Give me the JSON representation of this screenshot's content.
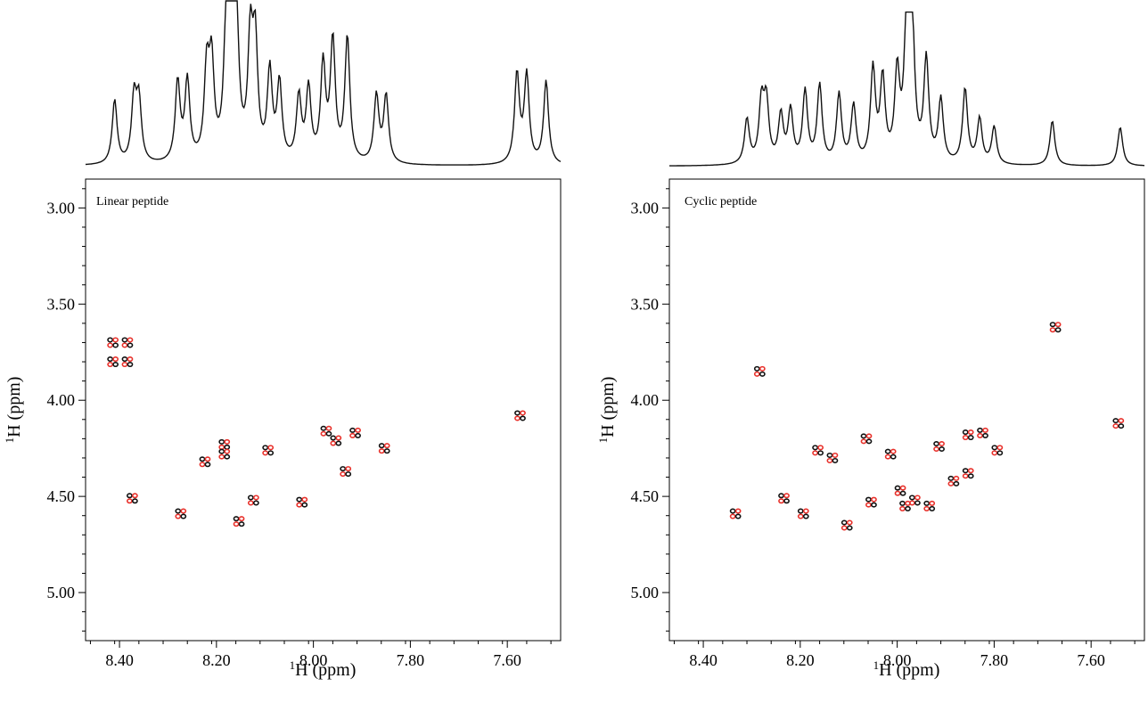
{
  "colors": {
    "reference": "#111111",
    "highlight": "#e8302a"
  },
  "chart_data": [
    {
      "type": "scatter",
      "panel_label": "Linear peptide",
      "xlabel": "1H (ppm)",
      "ylabel": "1H (ppm)",
      "xlim": [
        8.47,
        7.49
      ],
      "ylim": [
        2.85,
        5.25
      ],
      "x_ticks": [
        "8.40",
        "8.20",
        "8.00",
        "7.80",
        "7.60"
      ],
      "y_ticks": [
        "3.00",
        "3.50",
        "4.00",
        "4.50",
        "5.00"
      ],
      "peaks": [
        {
          "x": 8.41,
          "y": 3.7
        },
        {
          "x": 8.38,
          "y": 3.7
        },
        {
          "x": 8.41,
          "y": 3.8
        },
        {
          "x": 8.38,
          "y": 3.8
        },
        {
          "x": 8.37,
          "y": 4.51
        },
        {
          "x": 8.27,
          "y": 4.59
        },
        {
          "x": 8.22,
          "y": 4.32
        },
        {
          "x": 8.18,
          "y": 4.23
        },
        {
          "x": 8.18,
          "y": 4.28
        },
        {
          "x": 8.15,
          "y": 4.63
        },
        {
          "x": 8.12,
          "y": 4.52
        },
        {
          "x": 8.09,
          "y": 4.26
        },
        {
          "x": 8.02,
          "y": 4.53
        },
        {
          "x": 7.97,
          "y": 4.16
        },
        {
          "x": 7.95,
          "y": 4.21
        },
        {
          "x": 7.93,
          "y": 4.37
        },
        {
          "x": 7.91,
          "y": 4.17
        },
        {
          "x": 7.85,
          "y": 4.25
        },
        {
          "x": 7.57,
          "y": 4.08
        }
      ],
      "spectrum_peaks": [
        {
          "x": 8.41,
          "h": 0.4
        },
        {
          "x": 8.37,
          "h": 0.4
        },
        {
          "x": 8.36,
          "h": 0.38
        },
        {
          "x": 8.28,
          "h": 0.5
        },
        {
          "x": 8.26,
          "h": 0.5
        },
        {
          "x": 8.22,
          "h": 0.55
        },
        {
          "x": 8.21,
          "h": 0.58
        },
        {
          "x": 8.18,
          "h": 0.7
        },
        {
          "x": 8.17,
          "h": 0.85
        },
        {
          "x": 8.16,
          "h": 1.0
        },
        {
          "x": 8.13,
          "h": 0.72
        },
        {
          "x": 8.12,
          "h": 0.7
        },
        {
          "x": 8.09,
          "h": 0.55
        },
        {
          "x": 8.07,
          "h": 0.48
        },
        {
          "x": 8.03,
          "h": 0.4
        },
        {
          "x": 8.01,
          "h": 0.45
        },
        {
          "x": 7.98,
          "h": 0.6
        },
        {
          "x": 7.96,
          "h": 0.75
        },
        {
          "x": 7.93,
          "h": 0.78
        },
        {
          "x": 7.87,
          "h": 0.42
        },
        {
          "x": 7.85,
          "h": 0.42
        },
        {
          "x": 7.58,
          "h": 0.56
        },
        {
          "x": 7.56,
          "h": 0.55
        },
        {
          "x": 7.52,
          "h": 0.52
        }
      ]
    },
    {
      "type": "scatter",
      "panel_label": "Cyclic peptide",
      "xlabel": "1H (ppm)",
      "ylabel": "1H (ppm)",
      "xlim": [
        8.47,
        7.49
      ],
      "ylim": [
        2.85,
        5.25
      ],
      "x_ticks": [
        "8.40",
        "8.20",
        "8.00",
        "7.80",
        "7.60"
      ],
      "y_ticks": [
        "3.00",
        "3.50",
        "4.00",
        "4.50",
        "5.00"
      ],
      "peaks": [
        {
          "x": 8.33,
          "y": 4.59
        },
        {
          "x": 8.28,
          "y": 3.85
        },
        {
          "x": 8.23,
          "y": 4.51
        },
        {
          "x": 8.19,
          "y": 4.59
        },
        {
          "x": 8.16,
          "y": 4.26
        },
        {
          "x": 8.13,
          "y": 4.3
        },
        {
          "x": 8.1,
          "y": 4.65
        },
        {
          "x": 8.06,
          "y": 4.2
        },
        {
          "x": 8.05,
          "y": 4.53
        },
        {
          "x": 8.01,
          "y": 4.28
        },
        {
          "x": 7.99,
          "y": 4.47
        },
        {
          "x": 7.98,
          "y": 4.55
        },
        {
          "x": 7.96,
          "y": 4.52
        },
        {
          "x": 7.93,
          "y": 4.55
        },
        {
          "x": 7.91,
          "y": 4.24
        },
        {
          "x": 7.88,
          "y": 4.42
        },
        {
          "x": 7.85,
          "y": 4.18
        },
        {
          "x": 7.85,
          "y": 4.38
        },
        {
          "x": 7.82,
          "y": 4.17
        },
        {
          "x": 7.79,
          "y": 4.26
        },
        {
          "x": 7.67,
          "y": 3.62
        },
        {
          "x": 7.54,
          "y": 4.12
        }
      ],
      "spectrum_peaks": [
        {
          "x": 8.31,
          "h": 0.3
        },
        {
          "x": 8.28,
          "h": 0.4
        },
        {
          "x": 8.27,
          "h": 0.4
        },
        {
          "x": 8.24,
          "h": 0.32
        },
        {
          "x": 8.22,
          "h": 0.35
        },
        {
          "x": 8.19,
          "h": 0.48
        },
        {
          "x": 8.16,
          "h": 0.52
        },
        {
          "x": 8.12,
          "h": 0.46
        },
        {
          "x": 8.09,
          "h": 0.38
        },
        {
          "x": 8.05,
          "h": 0.62
        },
        {
          "x": 8.03,
          "h": 0.55
        },
        {
          "x": 8.0,
          "h": 0.58
        },
        {
          "x": 7.98,
          "h": 0.95
        },
        {
          "x": 7.97,
          "h": 0.98
        },
        {
          "x": 7.94,
          "h": 0.68
        },
        {
          "x": 7.91,
          "h": 0.42
        },
        {
          "x": 7.86,
          "h": 0.5
        },
        {
          "x": 7.83,
          "h": 0.3
        },
        {
          "x": 7.8,
          "h": 0.25
        },
        {
          "x": 7.68,
          "h": 0.3
        },
        {
          "x": 7.54,
          "h": 0.26
        }
      ]
    }
  ]
}
